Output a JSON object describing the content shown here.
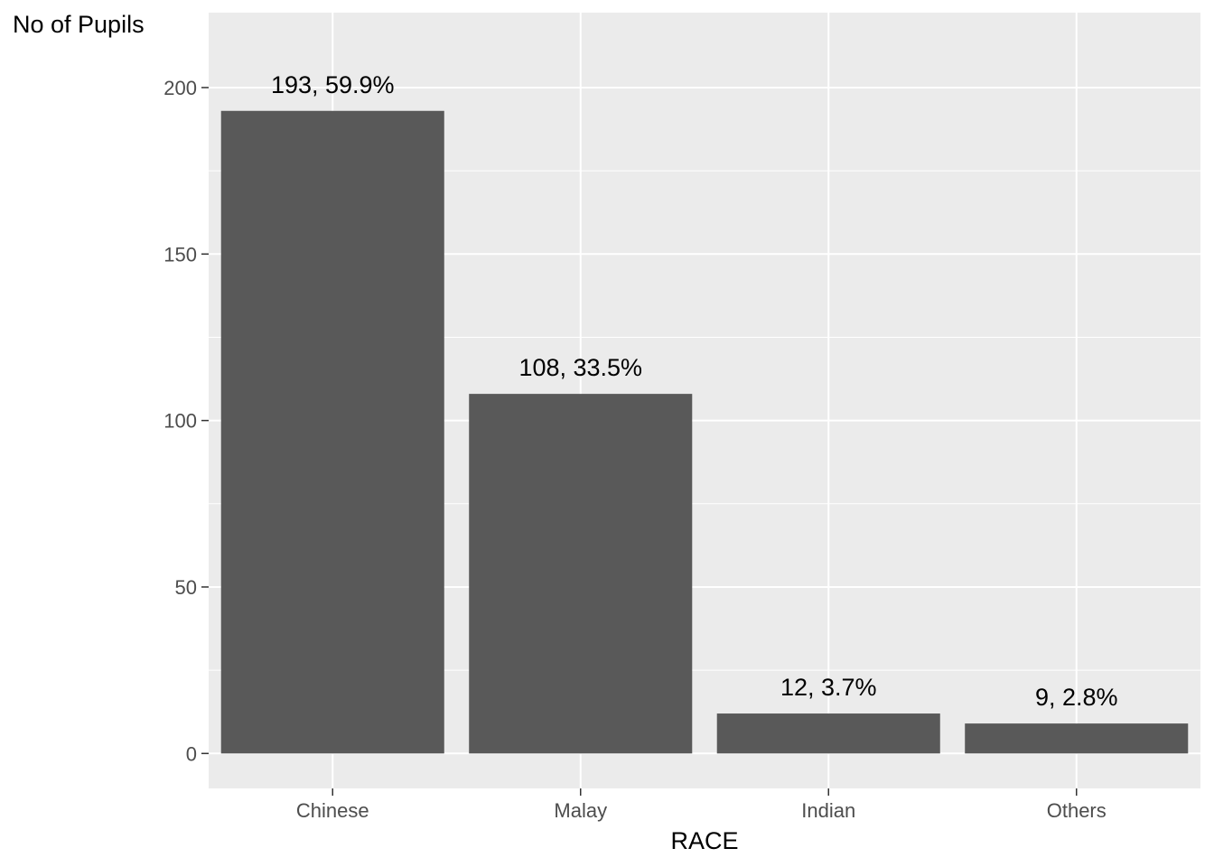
{
  "chart_data": {
    "type": "bar",
    "title": "",
    "xlabel": "RACE",
    "ylabel": "No of Pupils",
    "categories": [
      "Chinese",
      "Malay",
      "Indian",
      "Others"
    ],
    "values": [
      193,
      108,
      12,
      9
    ],
    "data_labels": [
      "193, 59.9%",
      "108, 33.5%",
      "12, 3.7%",
      "9, 2.8%"
    ],
    "ylim": [
      -10.5,
      222.5
    ],
    "yticks": [
      0,
      50,
      100,
      150,
      200
    ],
    "ytick_labels": [
      "0",
      "50",
      "100",
      "150",
      "200"
    ],
    "grid": true,
    "colors": {
      "panel_background": "#ebebeb",
      "grid_line": "#ffffff",
      "bar_fill": "#595959",
      "tick_mark": "#333333"
    }
  }
}
